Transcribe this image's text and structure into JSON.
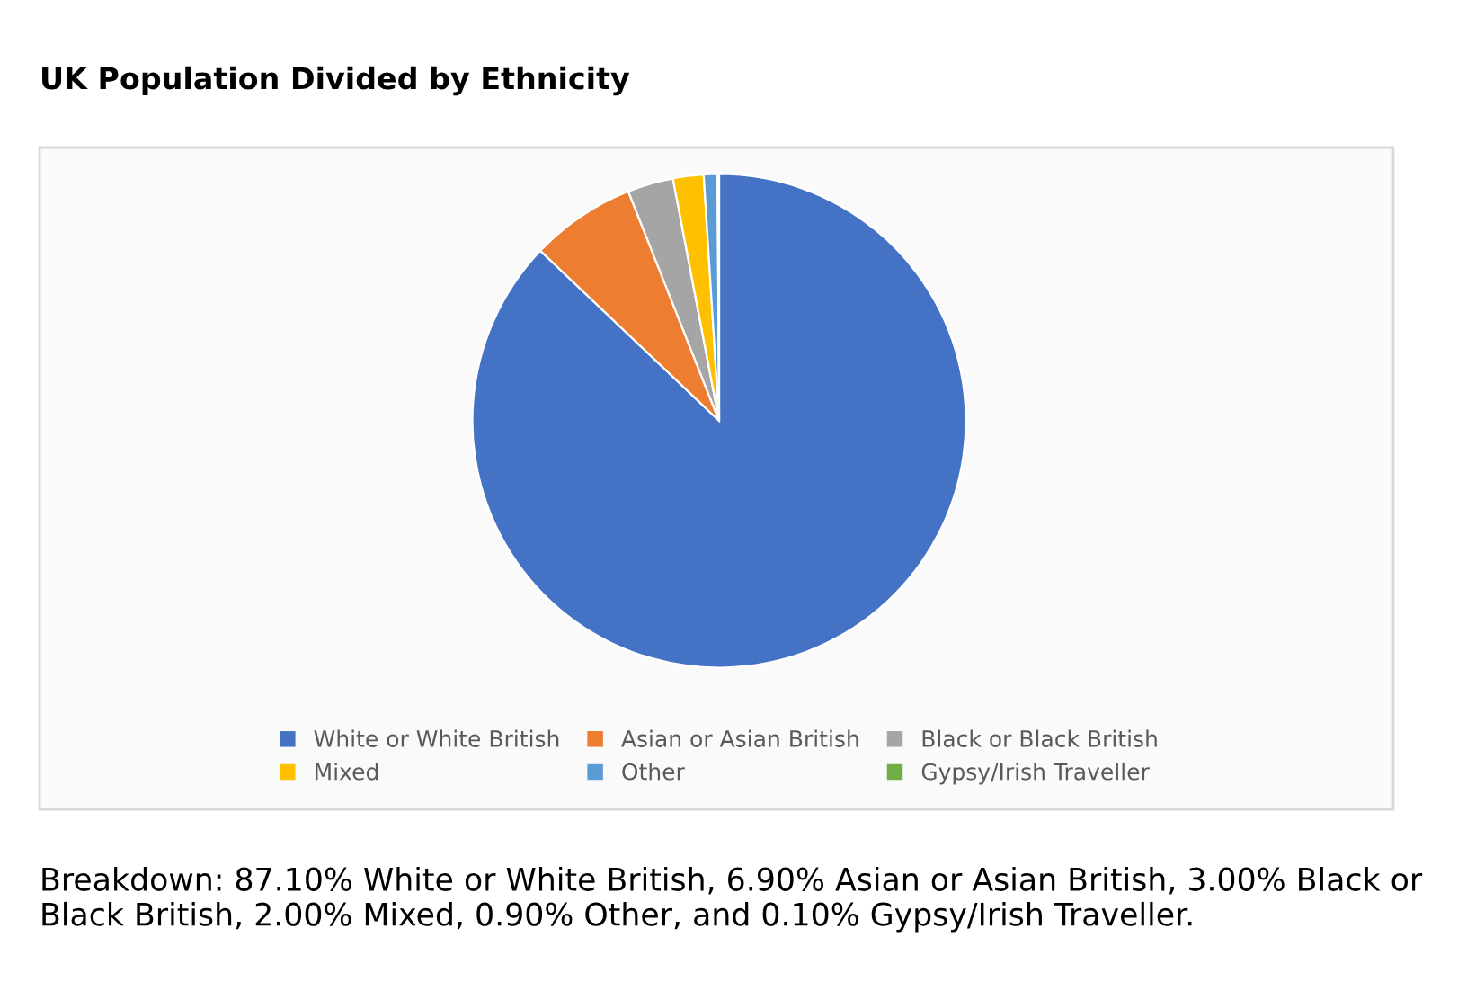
{
  "chart_data": {
    "type": "pie",
    "title": "UK Population Divided by Ethnicity",
    "categories": [
      "White or White British",
      "Asian or Asian British",
      "Black or Black British",
      "Mixed",
      "Other",
      "Gypsy/Irish Traveller"
    ],
    "values": [
      87.1,
      6.9,
      3.0,
      2.0,
      0.9,
      0.1
    ],
    "colors": [
      "#4472c4",
      "#ed7d31",
      "#a5a5a5",
      "#ffc000",
      "#5b9bd5",
      "#70ad47"
    ],
    "legend": "bottom",
    "annotations": [
      "Breakdown: 87.10% White or White British, 6.90% Asian or Asian British, 3.00% Black or Black British, 2.00% Mixed, 0.90% Other, and 0.10% Gypsy/Irish Traveller."
    ]
  }
}
